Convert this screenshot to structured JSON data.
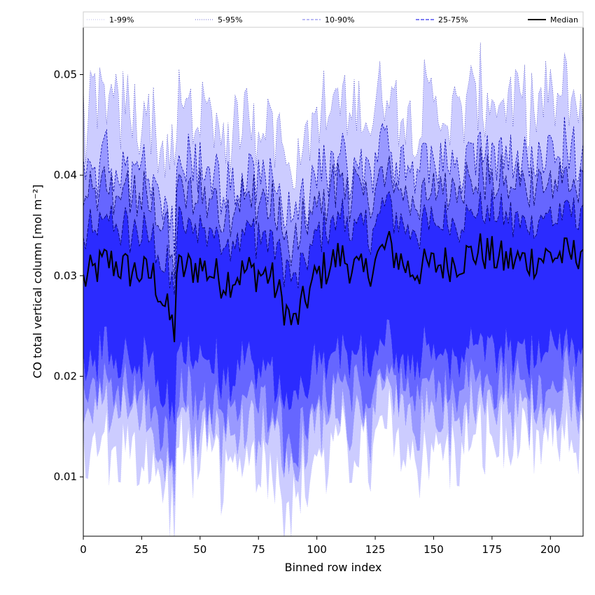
{
  "chart_data": {
    "type": "area",
    "xlabel": "Binned row index",
    "ylabel": "CO total vertical column [mol m⁻²]",
    "xlim": [
      0,
      214
    ],
    "ylim": [
      0.0041,
      0.0547
    ],
    "x_ticks": [
      0,
      25,
      50,
      75,
      100,
      125,
      150,
      175,
      200
    ],
    "y_ticks": [
      0.01,
      0.02,
      0.03,
      0.04,
      0.05
    ],
    "x_tick_labels": [
      "0",
      "25",
      "50",
      "75",
      "100",
      "125",
      "150",
      "175",
      "200"
    ],
    "y_tick_labels": [
      "0.01",
      "0.02",
      "0.03",
      "0.04",
      "0.05"
    ],
    "grid": false,
    "legend_position": "top, spanning full width",
    "legend": [
      "1-99%",
      "5-95%",
      "10-90%",
      "25-75%",
      "Median"
    ],
    "n_bins": 214,
    "series": [
      {
        "name": "1-99%",
        "kind": "band",
        "lower_mean": 0.0115,
        "upper_mean": 0.0455,
        "lower_min": 0.0065,
        "upper_max": 0.0525,
        "fill": "#ccccff",
        "line": "dotted"
      },
      {
        "name": "5-95%",
        "kind": "band",
        "lower_mean": 0.015,
        "upper_mean": 0.04,
        "fill": "#9999ff",
        "line": "dashed-thin"
      },
      {
        "name": "10-90%",
        "kind": "band",
        "lower_mean": 0.0172,
        "upper_mean": 0.0375,
        "fill": "#6666ff",
        "line": "dashed"
      },
      {
        "name": "25-75%",
        "kind": "band",
        "lower_mean": 0.021,
        "upper_mean": 0.034,
        "fill": "#2b2bff",
        "line": "dashed"
      },
      {
        "name": "Median",
        "kind": "line",
        "x": [
          0,
          10,
          20,
          30,
          39,
          40,
          50,
          60,
          70,
          80,
          90,
          100,
          110,
          120,
          130,
          140,
          150,
          160,
          170,
          180,
          190,
          200,
          210,
          214
        ],
        "y": [
          0.0295,
          0.0315,
          0.0305,
          0.03,
          0.0245,
          0.0305,
          0.031,
          0.0295,
          0.0305,
          0.03,
          0.025,
          0.03,
          0.032,
          0.03,
          0.033,
          0.0305,
          0.031,
          0.0315,
          0.0325,
          0.0315,
          0.0315,
          0.032,
          0.032,
          0.033
        ],
        "color": "#000000"
      }
    ]
  },
  "colors": {
    "band_1_99": "#ccccff",
    "band_5_95": "#9999ff",
    "band_10_90": "#6666ff",
    "band_25_75": "#2b2bff",
    "median": "#000000"
  }
}
